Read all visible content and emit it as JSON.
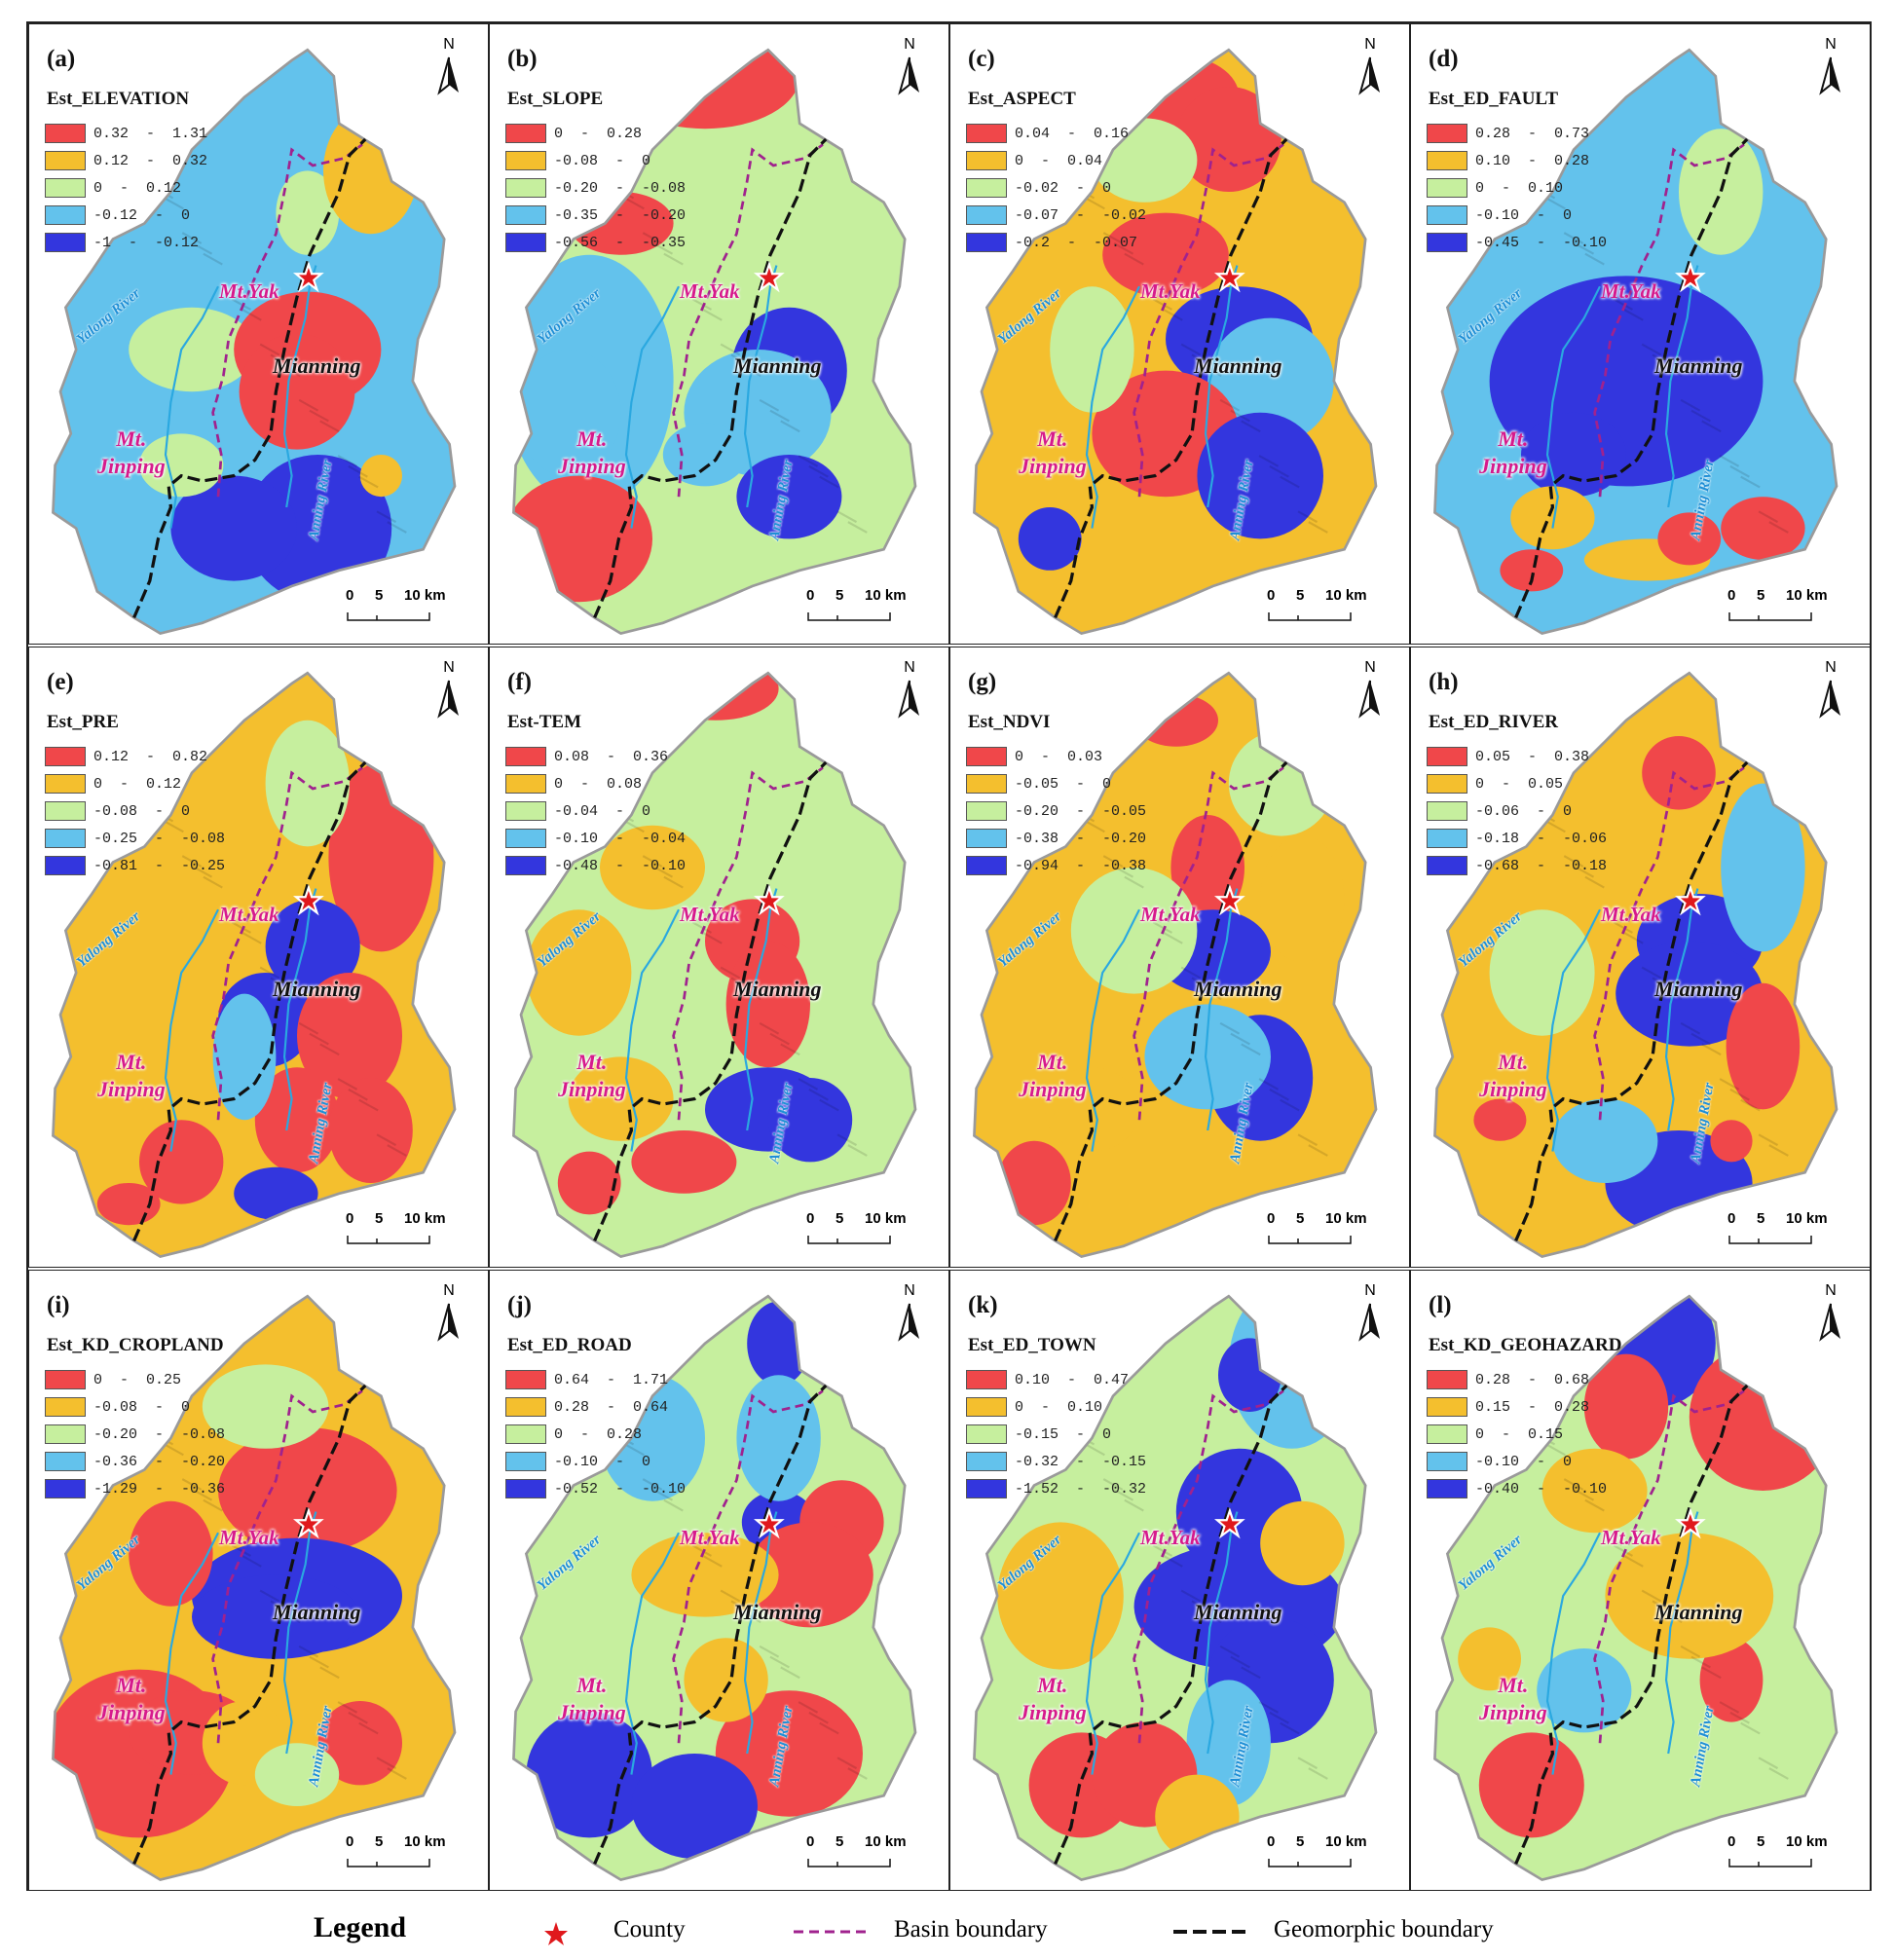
{
  "figure": {
    "colors": {
      "c1": "#f0474a",
      "c2": "#f4bf2e",
      "c3": "#c6ef9e",
      "c4": "#63c2ec",
      "c5": "#3336de"
    },
    "north_label": "N",
    "scale_labels": [
      "0",
      "5",
      "10 km"
    ],
    "place_names": {
      "yak": "Mt.Yak",
      "jinping": [
        "Mt.",
        "Jinping"
      ],
      "mianning": "Mianning",
      "yalong": "Yalong River",
      "anning": "Anning River"
    },
    "panels": [
      {
        "label": "(a)",
        "title": "Est_ELEVATION",
        "ranges": [
          "0.32  -  1.31",
          "0.12  -  0.32",
          "0  -  0.12",
          "-0.12  -  0",
          "-1  -  -0.12"
        ]
      },
      {
        "label": "(b)",
        "title": "Est_SLOPE",
        "ranges": [
          "0  -  0.28",
          "-0.08  -  0",
          "-0.20  -  -0.08",
          "-0.35  -  -0.20",
          "-0.56  -  -0.35"
        ]
      },
      {
        "label": "(c)",
        "title": "Est_ASPECT",
        "ranges": [
          "0.04  -  0.16",
          "0  -  0.04",
          "-0.02  -  0",
          "-0.07  -  -0.02",
          "-0.2  -  -0.07"
        ]
      },
      {
        "label": "(d)",
        "title": "Est_ED_FAULT",
        "ranges": [
          "0.28  -  0.73",
          "0.10  -  0.28",
          "0  -  0.10",
          "-0.10  -  0",
          "-0.45  -  -0.10"
        ]
      },
      {
        "label": "(e)",
        "title": "Est_PRE",
        "ranges": [
          "0.12  -  0.82",
          "0  -  0.12",
          "-0.08  -  0",
          "-0.25  -  -0.08",
          "-0.81  -  -0.25"
        ]
      },
      {
        "label": "(f)",
        "title": "Est-TEM",
        "ranges": [
          "0.08  -  0.36",
          "0  -  0.08",
          "-0.04  -  0",
          "-0.10  -  -0.04",
          "-0.48  -  -0.10"
        ]
      },
      {
        "label": "(g)",
        "title": "Est_NDVI",
        "ranges": [
          "0  -  0.03",
          "-0.05  -  0",
          "-0.20  -  -0.05",
          "-0.38  -  -0.20",
          "-0.94  -  -0.38"
        ]
      },
      {
        "label": "(h)",
        "title": "Est_ED_RIVER",
        "ranges": [
          "0.05  -  0.38",
          "0  -  0.05",
          "-0.06  -  0",
          "-0.18  -  -0.06",
          "-0.68  -  -0.18"
        ]
      },
      {
        "label": "(i)",
        "title": "Est_KD_CROPLAND",
        "ranges": [
          "0  -  0.25",
          "-0.08  -  0",
          "-0.20  -  -0.08",
          "-0.36  -  -0.20",
          "-1.29  -  -0.36"
        ]
      },
      {
        "label": "(j)",
        "title": "Est_ED_ROAD",
        "ranges": [
          "0.64  -  1.71",
          "0.28  -  0.64",
          "0  -  0.28",
          "-0.10  -  0",
          "-0.52  -  -0.10"
        ]
      },
      {
        "label": "(k)",
        "title": "Est_ED_TOWN",
        "ranges": [
          "0.10  -  0.47",
          "0  -  0.10",
          "-0.15  -  0",
          "-0.32  -  -0.15",
          "-1.52  -  -0.32"
        ]
      },
      {
        "label": "(l)",
        "title": "Est_KD_GEOHAZARD",
        "ranges": [
          "0.28  -  0.68",
          "0.15  -  0.28",
          "0  -  0.15",
          "-0.10  -  0",
          "-0.40  -  -0.10"
        ]
      }
    ]
  },
  "legend": {
    "title": "Legend",
    "county": "County",
    "basin": "Basin boundary",
    "geomorphic": "Geomorphic boundary"
  }
}
